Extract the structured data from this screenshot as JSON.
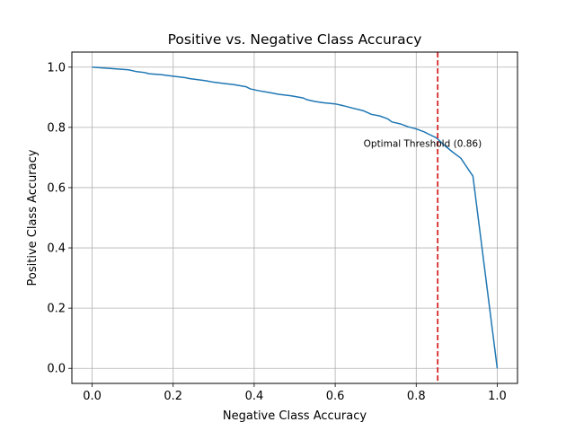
{
  "chart_data": {
    "type": "line",
    "title": "Positive vs. Negative Class Accuracy",
    "xlabel": "Negative Class Accuracy",
    "ylabel": "Positive Class Accuracy",
    "xlim": [
      -0.05,
      1.05
    ],
    "ylim": [
      -0.05,
      1.05
    ],
    "xticks": [
      0.0,
      0.2,
      0.4,
      0.6,
      0.8,
      1.0
    ],
    "yticks": [
      0.0,
      0.2,
      0.4,
      0.6,
      0.8,
      1.0
    ],
    "xtick_labels": [
      "0.0",
      "0.2",
      "0.4",
      "0.6",
      "0.8",
      "1.0"
    ],
    "ytick_labels": [
      "0.0",
      "0.2",
      "0.4",
      "0.6",
      "0.8",
      "1.0"
    ],
    "grid": true,
    "line_color": "#1f77b4",
    "series": [
      {
        "x": [
          0.0,
          0.03,
          0.06,
          0.09,
          0.11,
          0.13,
          0.14,
          0.17,
          0.2,
          0.23,
          0.24,
          0.28,
          0.3,
          0.33,
          0.35,
          0.38,
          0.39,
          0.41,
          0.44,
          0.46,
          0.49,
          0.52,
          0.53,
          0.55,
          0.57,
          0.6,
          0.62,
          0.64,
          0.67,
          0.69,
          0.71,
          0.73,
          0.74,
          0.76,
          0.78,
          0.8,
          0.82,
          0.83,
          0.85,
          0.87,
          0.89,
          0.91,
          0.92,
          0.94,
          1.0
        ],
        "y": [
          1.0,
          0.997,
          0.994,
          0.991,
          0.985,
          0.982,
          0.978,
          0.975,
          0.97,
          0.965,
          0.962,
          0.955,
          0.95,
          0.945,
          0.942,
          0.935,
          0.928,
          0.922,
          0.915,
          0.91,
          0.905,
          0.898,
          0.892,
          0.886,
          0.882,
          0.878,
          0.872,
          0.865,
          0.855,
          0.843,
          0.838,
          0.828,
          0.818,
          0.812,
          0.802,
          0.795,
          0.785,
          0.778,
          0.765,
          0.74,
          0.718,
          0.698,
          0.678,
          0.638,
          0.0
        ]
      }
    ],
    "threshold": {
      "x": 0.853,
      "label": "Optimal Threshold (0.86)",
      "color": "#d62728"
    },
    "annotation_position": {
      "x": 0.67,
      "y": 0.735
    }
  }
}
